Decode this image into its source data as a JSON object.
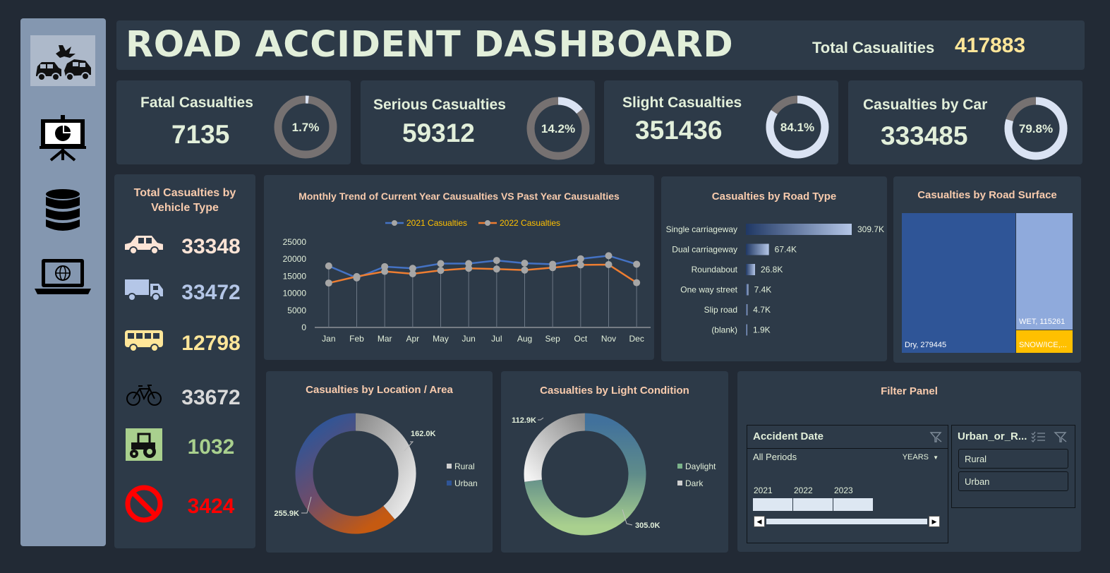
{
  "dashboard": {
    "title": "ROAD ACCIDENT DASHBOARD",
    "total_label": "Total Casualities",
    "total_value": "417883"
  },
  "sidebar": [
    {
      "name": "car-crash-icon"
    },
    {
      "name": "presentation-icon"
    },
    {
      "name": "database-icon"
    },
    {
      "name": "laptop-globe-icon"
    }
  ],
  "kpis": [
    {
      "label": "Fatal Casualties",
      "value": "7135",
      "pct_label": "1.7%",
      "pct": 1.7
    },
    {
      "label": "Serious Casualties",
      "value": "59312",
      "pct_label": "14.2%",
      "pct": 14.2
    },
    {
      "label": "Slight Casualties",
      "value": "351436",
      "pct_label": "84.1%",
      "pct": 84.1
    },
    {
      "label": "Casualties by Car",
      "value": "333485",
      "pct_label": "79.8%",
      "pct": 79.8
    }
  ],
  "vehicles": {
    "title_line1": "Total Casualties by",
    "title_line2": "Vehicle Type",
    "items": [
      {
        "icon": "car-icon",
        "value": "33348",
        "color": "#fce4d6"
      },
      {
        "icon": "truck-icon",
        "value": "33472",
        "color": "#b4c6e7"
      },
      {
        "icon": "bus-icon",
        "value": "12798",
        "color": "#ffe699"
      },
      {
        "icon": "bicycle-icon",
        "value": "33672",
        "color": "#d9d9d9"
      },
      {
        "icon": "tractor-icon",
        "value": "1032",
        "color": "#a9d08e"
      },
      {
        "icon": "no-entry-icon",
        "value": "3424",
        "color": "#ff0000"
      }
    ]
  },
  "monthly": {
    "title": "Monthly Trend of Current Year Causualties VS Past Year Causualties",
    "chart_data": {
      "type": "line",
      "categories": [
        "Jan",
        "Feb",
        "Mar",
        "Apr",
        "May",
        "Jun",
        "Jul",
        "Aug",
        "Sep",
        "Oct",
        "Nov",
        "Dec"
      ],
      "series": [
        {
          "name": "2021 Casualties",
          "color": "#4472c4",
          "values": [
            18000,
            14500,
            17800,
            17300,
            18700,
            18700,
            19600,
            18800,
            18500,
            20100,
            21000,
            18500
          ]
        },
        {
          "name": "2022 Casualties",
          "color": "#ed7d31",
          "values": [
            13000,
            14900,
            16400,
            15700,
            16700,
            17300,
            17100,
            16800,
            17500,
            18300,
            18400,
            13100
          ]
        }
      ],
      "yticks": [
        "0",
        "5000",
        "10000",
        "15000",
        "20000",
        "25000"
      ],
      "ylim": [
        0,
        25000
      ]
    }
  },
  "road_type": {
    "title": "Casualties by Road Type",
    "chart_data": {
      "type": "bar",
      "categories": [
        "Single carriageway",
        "Dual carriageway",
        "Roundabout",
        "One way street",
        "Slip road",
        "(blank)"
      ],
      "values": [
        309.7,
        67.4,
        26.8,
        7.4,
        4.7,
        1.9
      ],
      "labels": [
        "309.7K",
        "67.4K",
        "26.8K",
        "7.4K",
        "4.7K",
        "1.9K"
      ]
    }
  },
  "road_surface": {
    "title": "Casualties by Road Surface",
    "chart_data": {
      "type": "treemap",
      "items": [
        {
          "label": "Dry, 279445",
          "value": 279445,
          "color": "#2f5597"
        },
        {
          "label": "WET, 115261",
          "value": 115261,
          "color": "#8faadc"
        },
        {
          "label": "SNOW/ICE,...",
          "value": 23177,
          "color": "#ffc000"
        }
      ]
    }
  },
  "location": {
    "title": "Casualties by Location / Area",
    "chart_data": {
      "type": "pie",
      "slices": [
        {
          "name": "Rural",
          "value": 162.0,
          "label": "162.0K",
          "color": "#d0d0d0"
        },
        {
          "name": "Urban",
          "value": 255.9,
          "label": "255.9K",
          "color": "#2f5597"
        }
      ]
    }
  },
  "light": {
    "title": "Casualties by Light Condition",
    "chart_data": {
      "type": "pie",
      "slices": [
        {
          "name": "Daylight",
          "value": 305.0,
          "label": "305.0K",
          "color": "#7bb38a"
        },
        {
          "name": "Dark",
          "value": 112.9,
          "label": "112.9K",
          "color": "#cfcfcf"
        }
      ]
    }
  },
  "filter": {
    "title": "Filter Panel",
    "date_slicer": {
      "title": "Accident Date",
      "period": "All Periods",
      "level": "YEARS",
      "years": [
        "2021",
        "2022",
        "2023"
      ]
    },
    "area_slicer": {
      "title": "Urban_or_R...",
      "options": [
        "Rural",
        "Urban"
      ]
    }
  }
}
